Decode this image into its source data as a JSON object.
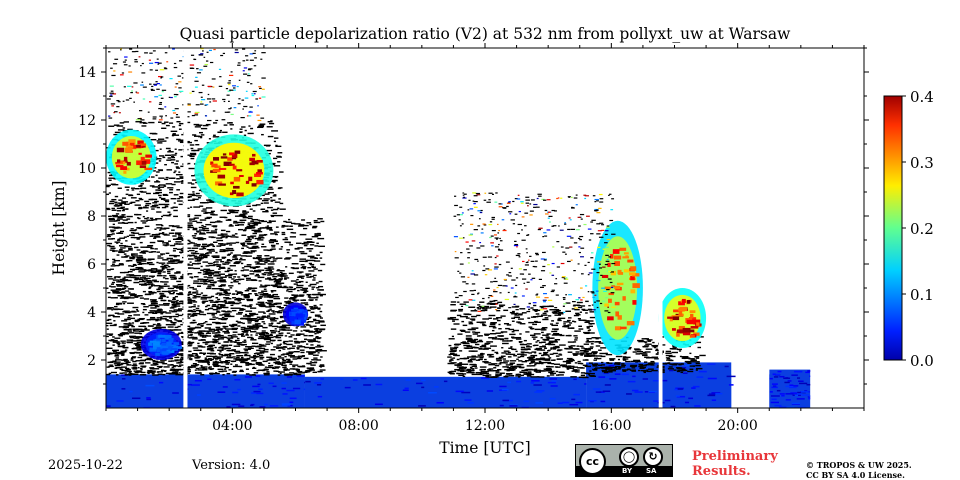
{
  "chart_data": {
    "type": "heatmap",
    "title": "Quasi particle depolarization ratio (V2) at 532 nm from pollyxt_uw at Warsaw",
    "xlabel": "Time [UTC]",
    "ylabel": "Height [km]",
    "xlim_hours": [
      0,
      24
    ],
    "ylim_km": [
      0,
      15
    ],
    "x_ticks": [
      {
        "value": 4,
        "label": "04:00"
      },
      {
        "value": 8,
        "label": "08:00"
      },
      {
        "value": 12,
        "label": "12:00"
      },
      {
        "value": 16,
        "label": "16:00"
      },
      {
        "value": 20,
        "label": "20:00"
      }
    ],
    "y_ticks": [
      {
        "value": 2,
        "label": "2"
      },
      {
        "value": 4,
        "label": "4"
      },
      {
        "value": 6,
        "label": "6"
      },
      {
        "value": 8,
        "label": "8"
      },
      {
        "value": 10,
        "label": "10"
      },
      {
        "value": 12,
        "label": "12"
      },
      {
        "value": 14,
        "label": "14"
      }
    ],
    "colorbar": {
      "min": 0.0,
      "max": 0.4,
      "colormap": "jet",
      "ticks": [
        {
          "value": 0.0,
          "label": "0.0"
        },
        {
          "value": 0.1,
          "label": "0.1"
        },
        {
          "value": 0.2,
          "label": "0.2"
        },
        {
          "value": 0.3,
          "label": "0.3"
        },
        {
          "value": 0.4,
          "label": "0.4"
        }
      ]
    },
    "regions": [
      {
        "name": "boundary-layer-morning",
        "kind": "field",
        "t": [
          0.0,
          6.3
        ],
        "h": [
          0.0,
          1.4
        ],
        "value": 0.02
      },
      {
        "name": "boundary-layer-day",
        "kind": "field",
        "t": [
          6.3,
          15.2
        ],
        "h": [
          0.0,
          1.3
        ],
        "value": 0.02
      },
      {
        "name": "boundary-layer-afternoon",
        "kind": "field",
        "t": [
          15.2,
          19.8
        ],
        "h": [
          0.0,
          1.9
        ],
        "value": 0.03
      },
      {
        "name": "boundary-layer-evening",
        "kind": "field",
        "t": [
          21.0,
          22.3
        ],
        "h": [
          0.0,
          1.6
        ],
        "value": 0.03
      },
      {
        "name": "signal-black-morning",
        "kind": "noise",
        "t": [
          0.0,
          5.5
        ],
        "h": [
          1.4,
          12.0
        ]
      },
      {
        "name": "signal-black-late",
        "kind": "noise",
        "t": [
          5.5,
          6.8
        ],
        "h": [
          1.4,
          8.0
        ]
      },
      {
        "name": "signal-black-midday",
        "kind": "noise",
        "t": [
          10.8,
          15.4
        ],
        "h": [
          1.3,
          4.5
        ]
      },
      {
        "name": "signal-black-afternoon",
        "kind": "noise",
        "t": [
          15.4,
          18.8
        ],
        "h": [
          1.5,
          3.0
        ]
      },
      {
        "name": "sparse-upper-morning",
        "kind": "sparse",
        "t": [
          0.0,
          5.0
        ],
        "h": [
          12.0,
          15.0
        ]
      },
      {
        "name": "cirrus-early",
        "kind": "cloud",
        "t": [
          0.0,
          1.6
        ],
        "h": [
          9.3,
          11.6
        ],
        "value": 0.33
      },
      {
        "name": "cirrus-main",
        "kind": "cloud",
        "t": [
          2.8,
          5.3
        ],
        "h": [
          8.4,
          11.4
        ],
        "value": 0.36
      },
      {
        "name": "aerosol-low-early",
        "kind": "cloud",
        "t": [
          1.1,
          2.4
        ],
        "h": [
          2.0,
          3.3
        ],
        "value": 0.09
      },
      {
        "name": "aerosol-mid-late",
        "kind": "cloud",
        "t": [
          5.6,
          6.4
        ],
        "h": [
          3.4,
          4.4
        ],
        "value": 0.07
      },
      {
        "name": "cloud-afternoon-tower",
        "kind": "cloud",
        "t": [
          15.4,
          17.0
        ],
        "h": [
          2.2,
          7.8
        ],
        "value": 0.31
      },
      {
        "name": "cloud-evening",
        "kind": "cloud",
        "t": [
          17.5,
          19.0
        ],
        "h": [
          2.5,
          5.0
        ],
        "value": 0.34
      },
      {
        "name": "sparse-afternoon",
        "kind": "sparse",
        "t": [
          11.0,
          16.0
        ],
        "h": [
          4.0,
          9.0
        ]
      }
    ],
    "gaps": [
      {
        "t": [
          2.45,
          2.58
        ],
        "h": [
          0,
          15
        ]
      },
      {
        "t": [
          17.5,
          17.62
        ],
        "h": [
          0,
          4.5
        ]
      },
      {
        "t": [
          19.8,
          21.0
        ],
        "h": [
          1.4,
          2.5
        ]
      },
      {
        "t": [
          22.3,
          24.0
        ],
        "h": [
          0,
          15
        ]
      }
    ]
  },
  "footer": {
    "date": "2025-10-22",
    "version": "Version: 4.0",
    "preliminary_line1": "Preliminary",
    "preliminary_line2": "Results.",
    "copyright_line1": "© TROPOS & UW 2025.",
    "copyright_line2": "CC BY SA 4.0 License."
  },
  "license_badge": {
    "mark": "cc",
    "by_label": "BY",
    "sa_label": "SA",
    "icons": [
      "cc-icon",
      "by-person-icon",
      "sa-share-icon"
    ]
  }
}
